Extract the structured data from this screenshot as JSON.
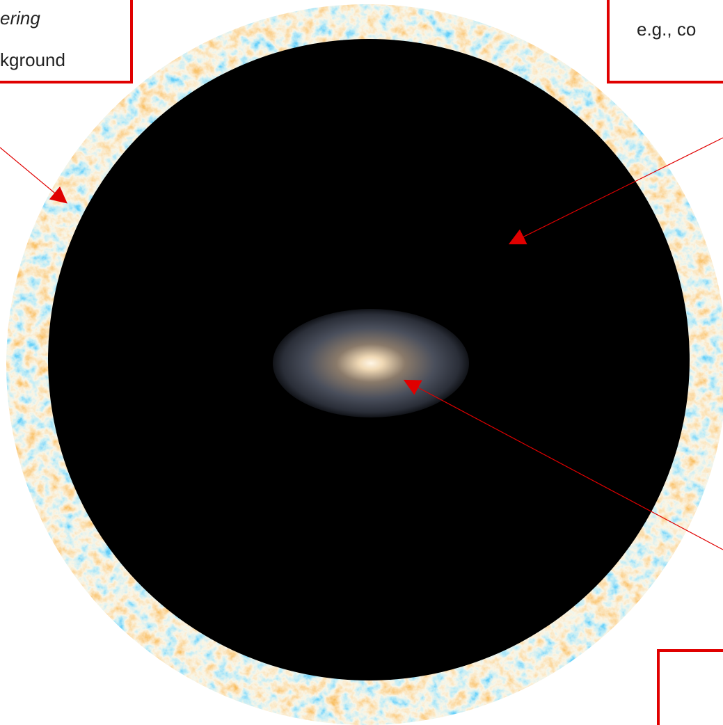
{
  "boxes": [
    {
      "lines": [
        "ering",
        "kground"
      ]
    },
    {
      "lines": [
        "e.g., co"
      ]
    }
  ]
}
